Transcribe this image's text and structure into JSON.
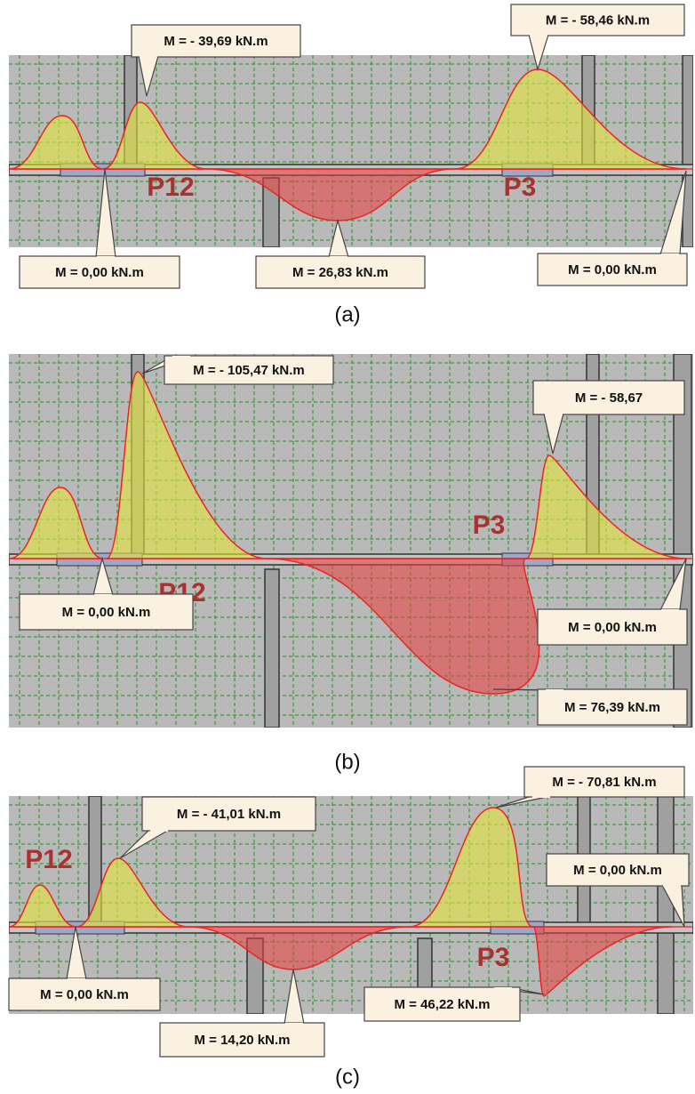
{
  "figure": {
    "panels": [
      {
        "caption": "(a)",
        "pillar_labels": [
          "P12",
          "P3"
        ],
        "moment_labels": [
          "M = - 39,69 kN.m",
          "M = - 58,46 kN.m",
          "M = 0,00 kN.m",
          "M = 26,83 kN.m",
          "M = 0,00 kN.m"
        ]
      },
      {
        "caption": "(b)",
        "pillar_labels": [
          "P12",
          "P3"
        ],
        "moment_labels": [
          "M = - 105,47 kN.m",
          "M = - 58,67",
          "M = 0,00 kN.m",
          "M = 0,00 kN.m",
          "M = 76,39 kN.m"
        ]
      },
      {
        "caption": "(c)",
        "pillar_labels": [
          "P12",
          "P3"
        ],
        "moment_labels": [
          "M = - 41,01 kN.m",
          "M = - 70,81 kN.m",
          "M = 0,00 kN.m",
          "M = 0,00 kN.m",
          "M = 14,20 kN.m",
          "M = 46,22 kN.m"
        ]
      }
    ]
  }
}
